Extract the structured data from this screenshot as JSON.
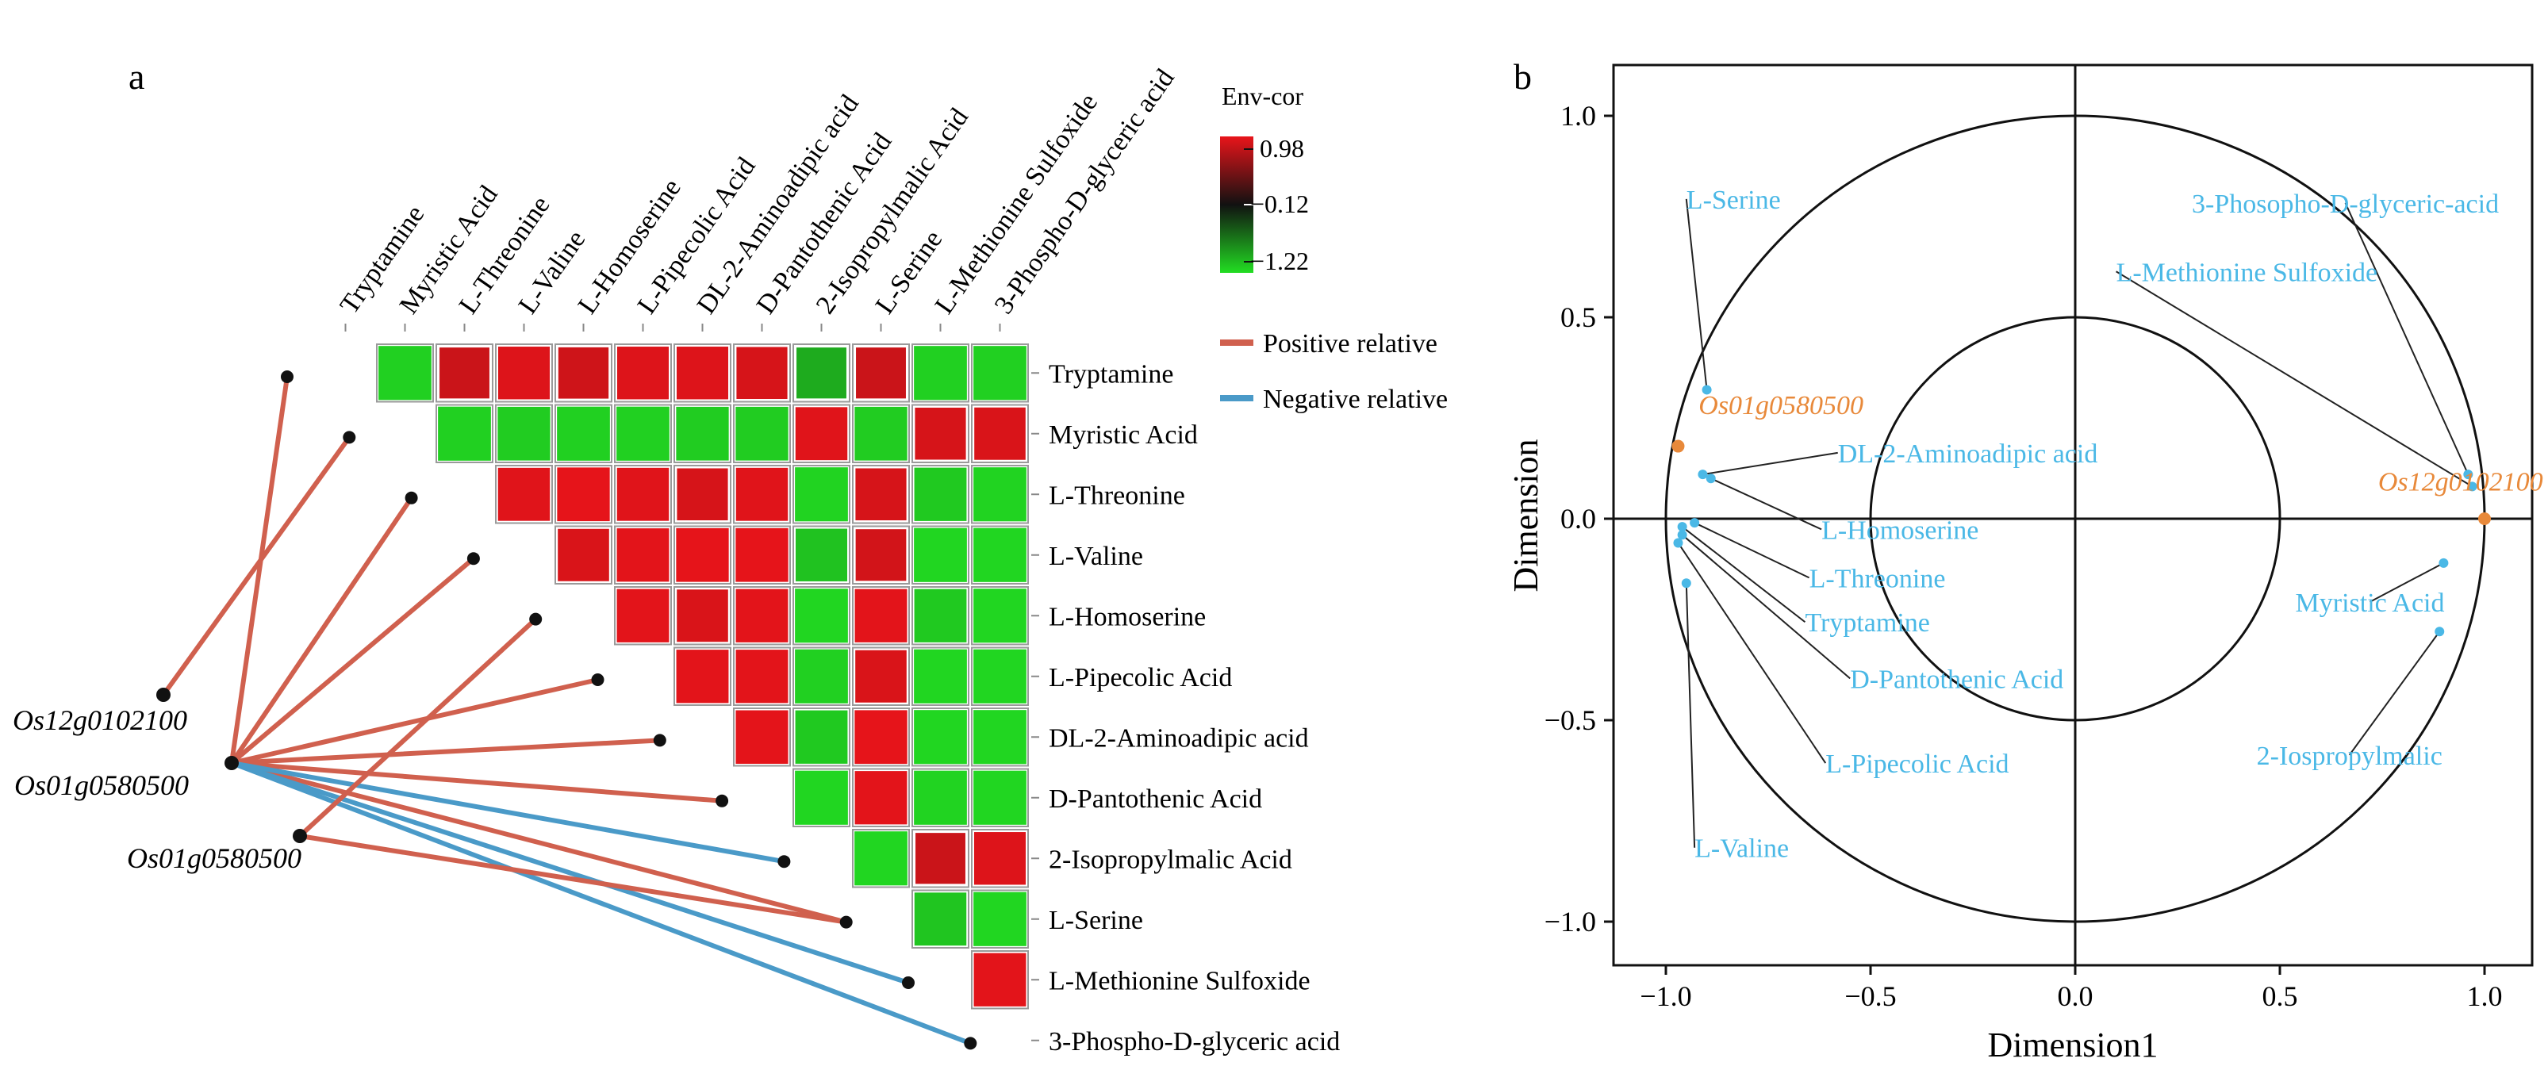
{
  "panels": {
    "a": "a",
    "b": "b"
  },
  "colors": {
    "positive": "#d0604e",
    "negative": "#4a9ac8",
    "high": "#e8141a",
    "mid": "#111111",
    "low": "#22dd22",
    "cyan_text": "#4ab8e6",
    "orange": "#e8893a",
    "node": "#111111"
  },
  "heatmap": {
    "legend_title": "Env-cor",
    "legend_ticks": [
      "0.98",
      "−0.12",
      "−1.22"
    ],
    "relation_legend": [
      {
        "label": "Positive relative",
        "type": "positive"
      },
      {
        "label": "Negative relative",
        "type": "negative"
      }
    ],
    "metabolites": [
      "Tryptamine",
      "Myristic Acid",
      "L-Threonine",
      "L-Valine",
      "L-Homoserine",
      "L-Pipecolic Acid",
      "DL-2-Aminoadipic acid",
      "D-Pantothenic Acid",
      "2-Isopropylmalic Acid",
      "L-Serine",
      "L-Methionine Sulfoxide",
      "3-Phospho-D-glyceric acid"
    ],
    "row_labels": [
      "Tryptamine",
      "Myristic Acid",
      "L-Threonine",
      "L-Valine",
      "L-Homoserine",
      "L-Pipecolic Acid",
      "DL-2-Aminoadipic acid",
      "D-Pantothenic Acid",
      "2-Isopropylmalic Acid",
      "L-Serine",
      "L-Methionine Sulfoxide",
      "3-Phospho-D-glyceric acid"
    ],
    "genes": [
      "Os12g0102100",
      "Os01g0580500",
      "Os01g0580500"
    ],
    "links": [
      {
        "gene": 0,
        "metabolite": 1,
        "type": "positive"
      },
      {
        "gene": 1,
        "metabolite": 0,
        "type": "positive"
      },
      {
        "gene": 1,
        "metabolite": 2,
        "type": "positive"
      },
      {
        "gene": 1,
        "metabolite": 3,
        "type": "positive"
      },
      {
        "gene": 1,
        "metabolite": 5,
        "type": "positive"
      },
      {
        "gene": 1,
        "metabolite": 6,
        "type": "positive"
      },
      {
        "gene": 1,
        "metabolite": 7,
        "type": "positive"
      },
      {
        "gene": 1,
        "metabolite": 9,
        "type": "positive"
      },
      {
        "gene": 1,
        "metabolite": 8,
        "type": "negative"
      },
      {
        "gene": 1,
        "metabolite": 10,
        "type": "negative"
      },
      {
        "gene": 1,
        "metabolite": 11,
        "type": "negative"
      },
      {
        "gene": 2,
        "metabolite": 4,
        "type": "positive"
      },
      {
        "gene": 2,
        "metabolite": 9,
        "type": "positive"
      }
    ]
  },
  "chart_data": [
    {
      "type": "heatmap",
      "title": "",
      "legend_title": "Env-cor",
      "color_range": [
        -1.22,
        0.98
      ],
      "rows": [
        "Tryptamine",
        "Myristic Acid",
        "L-Threonine",
        "L-Valine",
        "L-Homoserine",
        "L-Pipecolic Acid",
        "DL-2-Aminoadipic acid",
        "D-Pantothenic Acid",
        "2-Isopropylmalic Acid",
        "L-Serine",
        "L-Methionine Sulfoxide",
        "3-Phospho-D-glyceric acid"
      ],
      "cells": [
        {
          "row": 0,
          "col": 1,
          "value": -1.0
        },
        {
          "row": 0,
          "col": 2,
          "value": 0.55
        },
        {
          "row": 0,
          "col": 3,
          "value": 0.8
        },
        {
          "row": 0,
          "col": 4,
          "value": 0.6
        },
        {
          "row": 0,
          "col": 5,
          "value": 0.8
        },
        {
          "row": 0,
          "col": 6,
          "value": 0.8
        },
        {
          "row": 0,
          "col": 7,
          "value": 0.7
        },
        {
          "row": 0,
          "col": 8,
          "value": -0.55
        },
        {
          "row": 0,
          "col": 9,
          "value": 0.55
        },
        {
          "row": 0,
          "col": 10,
          "value": -1.0
        },
        {
          "row": 0,
          "col": 11,
          "value": -1.0
        },
        {
          "row": 1,
          "col": 2,
          "value": -1.0
        },
        {
          "row": 1,
          "col": 3,
          "value": -0.95
        },
        {
          "row": 1,
          "col": 4,
          "value": -1.0
        },
        {
          "row": 1,
          "col": 5,
          "value": -1.0
        },
        {
          "row": 1,
          "col": 6,
          "value": -0.95
        },
        {
          "row": 1,
          "col": 7,
          "value": -0.95
        },
        {
          "row": 1,
          "col": 8,
          "value": 0.85
        },
        {
          "row": 1,
          "col": 9,
          "value": -0.95
        },
        {
          "row": 1,
          "col": 10,
          "value": 0.7
        },
        {
          "row": 1,
          "col": 11,
          "value": 0.75
        },
        {
          "row": 2,
          "col": 3,
          "value": 0.85
        },
        {
          "row": 2,
          "col": 4,
          "value": 0.95
        },
        {
          "row": 2,
          "col": 5,
          "value": 0.85
        },
        {
          "row": 2,
          "col": 6,
          "value": 0.7
        },
        {
          "row": 2,
          "col": 7,
          "value": 0.85
        },
        {
          "row": 2,
          "col": 8,
          "value": -1.05
        },
        {
          "row": 2,
          "col": 9,
          "value": 0.7
        },
        {
          "row": 2,
          "col": 10,
          "value": -0.9
        },
        {
          "row": 2,
          "col": 11,
          "value": -1.05
        },
        {
          "row": 3,
          "col": 4,
          "value": 0.75
        },
        {
          "row": 3,
          "col": 5,
          "value": 0.9
        },
        {
          "row": 3,
          "col": 6,
          "value": 0.95
        },
        {
          "row": 3,
          "col": 7,
          "value": 0.95
        },
        {
          "row": 3,
          "col": 8,
          "value": -0.8
        },
        {
          "row": 3,
          "col": 9,
          "value": 0.65
        },
        {
          "row": 3,
          "col": 10,
          "value": -1.1
        },
        {
          "row": 3,
          "col": 11,
          "value": -1.1
        },
        {
          "row": 4,
          "col": 5,
          "value": 0.9
        },
        {
          "row": 4,
          "col": 6,
          "value": 0.75
        },
        {
          "row": 4,
          "col": 7,
          "value": 0.9
        },
        {
          "row": 4,
          "col": 8,
          "value": -1.1
        },
        {
          "row": 4,
          "col": 9,
          "value": 0.9
        },
        {
          "row": 4,
          "col": 10,
          "value": -0.9
        },
        {
          "row": 4,
          "col": 11,
          "value": -1.1
        },
        {
          "row": 5,
          "col": 6,
          "value": 0.9
        },
        {
          "row": 5,
          "col": 7,
          "value": 0.9
        },
        {
          "row": 5,
          "col": 8,
          "value": -1.0
        },
        {
          "row": 5,
          "col": 9,
          "value": 0.75
        },
        {
          "row": 5,
          "col": 10,
          "value": -1.1
        },
        {
          "row": 5,
          "col": 11,
          "value": -1.1
        },
        {
          "row": 6,
          "col": 7,
          "value": 0.92
        },
        {
          "row": 6,
          "col": 8,
          "value": -0.9
        },
        {
          "row": 6,
          "col": 9,
          "value": 0.95
        },
        {
          "row": 6,
          "col": 10,
          "value": -1.1
        },
        {
          "row": 6,
          "col": 11,
          "value": -1.1
        },
        {
          "row": 7,
          "col": 8,
          "value": -1.1
        },
        {
          "row": 7,
          "col": 9,
          "value": 0.9
        },
        {
          "row": 7,
          "col": 10,
          "value": -1.05
        },
        {
          "row": 7,
          "col": 11,
          "value": -1.1
        },
        {
          "row": 8,
          "col": 9,
          "value": -1.1
        },
        {
          "row": 8,
          "col": 10,
          "value": 0.55
        },
        {
          "row": 8,
          "col": 11,
          "value": 0.8
        },
        {
          "row": 9,
          "col": 10,
          "value": -0.85
        },
        {
          "row": 9,
          "col": 11,
          "value": -1.1
        },
        {
          "row": 10,
          "col": 11,
          "value": 0.9
        }
      ]
    },
    {
      "type": "scatter",
      "title": "",
      "xlabel": "Dimension1",
      "ylabel": "Dimension",
      "xlim": [
        -1.1,
        1.1
      ],
      "ylim": [
        -1.1,
        1.1
      ],
      "xticks": [
        "−1.0",
        "−0.5",
        "0.0",
        "0.5",
        "1.0"
      ],
      "yticks": [
        "1.0",
        "0.5",
        "0.0",
        "−0.5",
        "−1.0"
      ],
      "circles": [
        1.0,
        0.5
      ],
      "points": [
        {
          "label": "L-Serine",
          "x": -0.9,
          "y": 0.32,
          "lx": -0.95,
          "ly": 0.77,
          "group": "metabolite"
        },
        {
          "label": "Os01g0580500",
          "x": -0.97,
          "y": 0.18,
          "lx": -0.92,
          "ly": 0.26,
          "group": "gene"
        },
        {
          "label": "DL-2-Aminoadipic acid",
          "x": -0.91,
          "y": 0.11,
          "lx": -0.58,
          "ly": 0.14,
          "group": "metabolite"
        },
        {
          "label": "L-Homoserine",
          "x": -0.89,
          "y": 0.1,
          "lx": -0.62,
          "ly": -0.05,
          "group": "metabolite"
        },
        {
          "label": "L-Threonine",
          "x": -0.93,
          "y": -0.01,
          "lx": -0.65,
          "ly": -0.17,
          "group": "metabolite"
        },
        {
          "label": "Tryptamine",
          "x": -0.96,
          "y": -0.02,
          "lx": -0.66,
          "ly": -0.28,
          "group": "metabolite"
        },
        {
          "label": "D-Pantothenic Acid",
          "x": -0.96,
          "y": -0.04,
          "lx": -0.55,
          "ly": -0.42,
          "group": "metabolite"
        },
        {
          "label": "L-Pipecolic Acid",
          "x": -0.97,
          "y": -0.06,
          "lx": -0.61,
          "ly": -0.63,
          "group": "metabolite"
        },
        {
          "label": "L-Valine",
          "x": -0.95,
          "y": -0.16,
          "lx": -0.93,
          "ly": -0.84,
          "group": "metabolite"
        },
        {
          "label": "3-Phosopho-D-glyceric-acid",
          "x": 0.96,
          "y": 0.11,
          "lx": 0.66,
          "ly": 0.76,
          "group": "metabolite"
        },
        {
          "label": "L-Methionine Sulfoxide",
          "x": 0.97,
          "y": 0.08,
          "lx": 0.1,
          "ly": 0.59,
          "group": "metabolite"
        },
        {
          "label": "Os12g0102100",
          "x": 1.0,
          "y": 0.0,
          "lx": 0.74,
          "ly": 0.07,
          "group": "gene"
        },
        {
          "label": "Myristic Acid",
          "x": 0.9,
          "y": -0.11,
          "lx": 0.72,
          "ly": -0.23,
          "group": "metabolite"
        },
        {
          "label": "2-Iospropylmalic",
          "x": 0.89,
          "y": -0.28,
          "lx": 0.67,
          "ly": -0.61,
          "group": "metabolite"
        }
      ]
    }
  ]
}
